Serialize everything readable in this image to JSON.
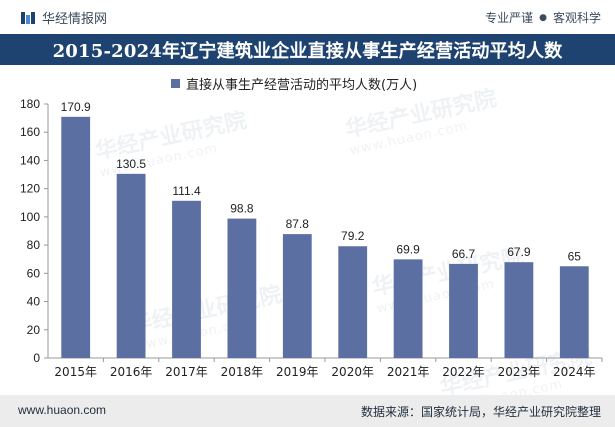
{
  "header": {
    "brand": "华经情报网",
    "tagline_left": "专业严谨",
    "tagline_right": "客观科学"
  },
  "title": "2015-2024年辽宁建筑业企业直接从事生产经营活动平均人数",
  "watermark": {
    "cn": "华经产业研究院",
    "en": "www.huaon.com"
  },
  "footer": {
    "url": "www.huaon.com",
    "source": "数据来源：国家统计局，华经产业研究院整理"
  },
  "colors": {
    "bar": "#5b6fa3",
    "title_bg": "#1f4370",
    "footer_bg": "#ececec"
  },
  "chart_data": {
    "type": "bar",
    "categories": [
      "2015年",
      "2016年",
      "2017年",
      "2018年",
      "2019年",
      "2020年",
      "2021年",
      "2022年",
      "2023年",
      "2024年"
    ],
    "series": [
      {
        "name": "直接从事生产经营活动的平均人数(万人)",
        "values": [
          170.9,
          130.5,
          111.4,
          98.8,
          87.8,
          79.2,
          69.9,
          66.7,
          67.9,
          65
        ]
      }
    ],
    "value_labels": [
      "170.9",
      "130.5",
      "111.4",
      "98.8",
      "87.8",
      "79.2",
      "69.9",
      "66.7",
      "67.9",
      "65"
    ],
    "yticks": [
      "0",
      "20",
      "40",
      "60",
      "80",
      "100",
      "120",
      "140",
      "160",
      "180"
    ],
    "ylim": [
      0,
      180
    ],
    "legend_position": "top",
    "grid": false
  }
}
